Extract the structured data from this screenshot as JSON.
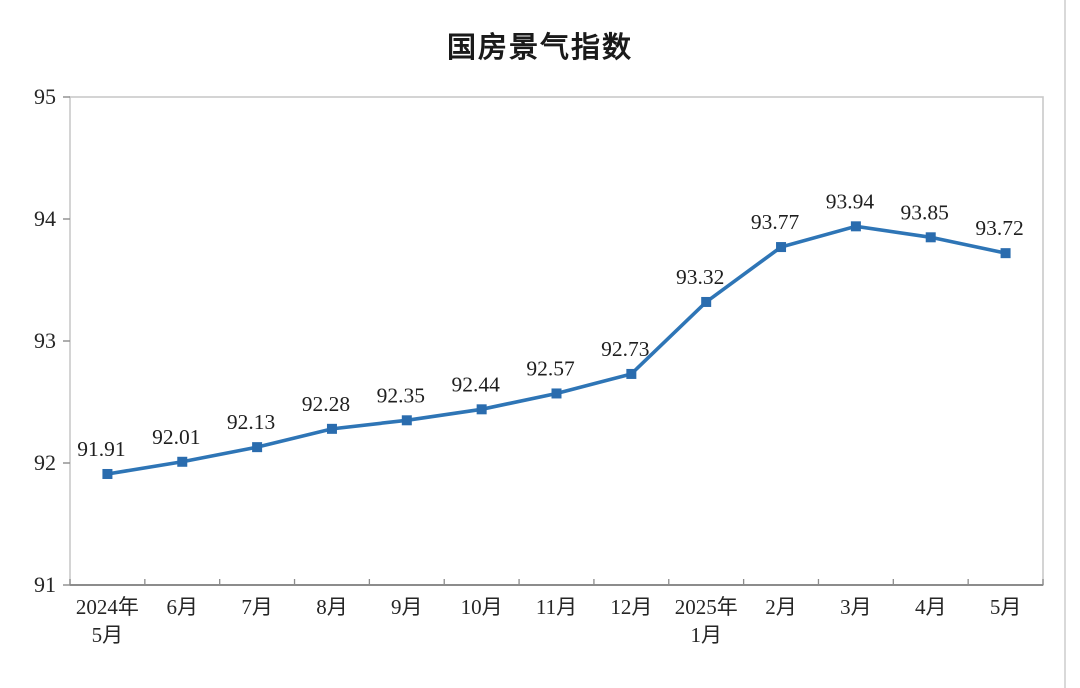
{
  "chart_data": {
    "type": "line",
    "title": "国房景气指数",
    "series_name": "国房景气指数",
    "categories": [
      [
        "2024年",
        "5月"
      ],
      [
        "6月"
      ],
      [
        "7月"
      ],
      [
        "8月"
      ],
      [
        "9月"
      ],
      [
        "10月"
      ],
      [
        "11月"
      ],
      [
        "12月"
      ],
      [
        "2025年",
        "1月"
      ],
      [
        "2月"
      ],
      [
        "3月"
      ],
      [
        "4月"
      ],
      [
        "5月"
      ]
    ],
    "values": [
      91.91,
      92.01,
      92.13,
      92.28,
      92.35,
      92.44,
      92.57,
      92.73,
      93.32,
      93.77,
      93.94,
      93.85,
      93.72
    ],
    "point_labels": [
      "91.91",
      "92.01",
      "92.13",
      "92.28",
      "92.35",
      "92.44",
      "92.57",
      "92.73",
      "93.32",
      "93.77",
      "93.94",
      "93.85",
      "93.72"
    ],
    "yticks": [
      "95",
      "94",
      "93",
      "92",
      "91"
    ],
    "ylim": [
      91,
      95
    ],
    "xlabel": "",
    "ylabel": "",
    "grid": false,
    "legend_position": "none",
    "colors": {
      "line": "#2e75b6",
      "marker": "#2a6cae",
      "data_label": "#1f1f1f",
      "axis_text": "#262626",
      "plot_border": "#c9c9c9",
      "bottom_axis": "#707070",
      "tick": "#8c8c8c",
      "title": "#1a1a1a"
    }
  }
}
